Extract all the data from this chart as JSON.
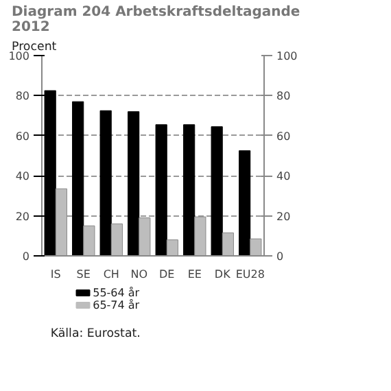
{
  "chart_data": {
    "type": "bar",
    "title": "Diagram 204 Arbetskraftsdeltagande 2012",
    "ylabel": "Procent",
    "categories": [
      "IS",
      "SE",
      "CH",
      "NO",
      "DE",
      "EE",
      "DK",
      "EU28"
    ],
    "series": [
      {
        "name": "55-64 år",
        "color": "#000000",
        "values": [
          82.5,
          77,
          72.5,
          72,
          65.5,
          65.5,
          64.5,
          52.5
        ]
      },
      {
        "name": "65-74 år",
        "color": "#bdbdbd",
        "values": [
          33.5,
          15,
          16,
          19,
          8,
          19.5,
          11.5,
          8.5
        ]
      }
    ],
    "ylim": [
      0,
      100
    ],
    "yticks": [
      0,
      20,
      40,
      60,
      80,
      100
    ],
    "y2lim": [
      0,
      100
    ],
    "y2ticks": [
      0,
      20,
      40,
      60,
      80,
      100
    ],
    "grid": "y",
    "legend": "bottom left",
    "annotations": [
      "Källa: Eurostat."
    ]
  }
}
